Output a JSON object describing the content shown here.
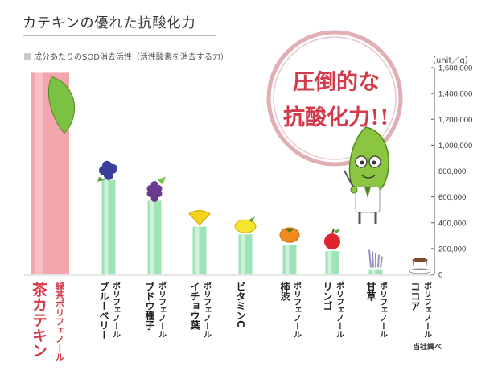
{
  "title": "カテキンの優れた抗酸化力",
  "subtitle": "成分あたりのSOD消去活性（活性酸素を消去する力）",
  "unit": "（unit／g）",
  "source": "当社調べ",
  "badge": {
    "line1": "圧倒的な",
    "line2": "抗酸化力!!"
  },
  "colors": {
    "tea_bar": "#f2a6ab",
    "other_bar": "#9ee3b5",
    "accent": "#d33a4a"
  },
  "chart_data": {
    "type": "bar",
    "title": "カテキンの優れた抗酸化力",
    "ylabel": "（unit／g）",
    "ylim": [
      0,
      1600000
    ],
    "yticks": [
      "0",
      "200,000",
      "400,000",
      "600,000",
      "800,000",
      "1,000,000",
      "1,200,000",
      "1,400,000",
      "1,600,000"
    ],
    "categories": [
      {
        "main": "茶カテキン",
        "sub": "緑茶ポリフェノール"
      },
      {
        "main": "ブルーベリー",
        "sub": "ポリフェノール"
      },
      {
        "main": "ブドウ種子",
        "sub": "ポリフェノール"
      },
      {
        "main": "イチョウ葉",
        "sub": "ポリフェノール"
      },
      {
        "main": "ビタミンC",
        "sub": ""
      },
      {
        "main": "柿渋",
        "sub": "ポリフェノール"
      },
      {
        "main": "リンゴ",
        "sub": "ポリフェノール"
      },
      {
        "main": "甘草",
        "sub": "ポリフェノール"
      },
      {
        "main": "ココア",
        "sub": "ポリフェノール"
      }
    ],
    "values": [
      1560000,
      730000,
      570000,
      370000,
      310000,
      230000,
      180000,
      40000,
      10000
    ],
    "icons": [
      "leaf-icon",
      "blueberry-icon",
      "grape-icon",
      "ginkgo-icon",
      "lemon-icon",
      "persimmon-icon",
      "apple-icon",
      "licorice-icon",
      "cocoa-icon"
    ],
    "grid": false
  }
}
